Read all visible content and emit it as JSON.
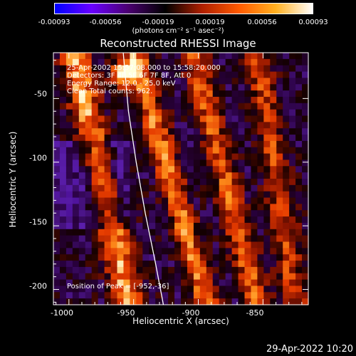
{
  "colorbar": {
    "ticks": [
      "-0.00093",
      "-0.00056",
      "-0.00019",
      "0.00019",
      "0.00056",
      "0.00093"
    ],
    "units": "(photons cm⁻² s⁻¹ asec⁻²)",
    "colors": [
      "#0000ff",
      "#6a00ff",
      "#4b0070",
      "#000000",
      "#b02000",
      "#ff5a00",
      "#ffb020",
      "#ffffff"
    ]
  },
  "chart_data": {
    "type": "heatmap",
    "title": "Reconstructed RHESSI Image",
    "xlabel": "Heliocentric X (arcsec)",
    "ylabel": "Heliocentric Y (arcsec)",
    "xlim": [
      -1012,
      -815
    ],
    "ylim": [
      -212,
      -14
    ],
    "x_ticks": [
      "-1000",
      "-950",
      "-900",
      "-850"
    ],
    "x_tick_values": [
      -1000,
      -950,
      -900,
      -850
    ],
    "y_ticks": [
      "-50",
      "-100",
      "-150",
      "-200"
    ],
    "y_tick_values": [
      -50,
      -100,
      -150,
      -200
    ],
    "peak": {
      "x": -952,
      "y": -36
    },
    "limb": [
      [
        -958,
        -14
      ],
      [
        -954,
        -60
      ],
      [
        -948,
        -100
      ],
      [
        -941,
        -140
      ],
      [
        -933,
        -180
      ],
      [
        -927,
        -212
      ]
    ]
  },
  "info": {
    "time": "25-Apr-2002 15:57:08.000 to 15:58:20.000",
    "detectors": "Detectors: 3F 4F 5F 6F 7F 8F, Att 0",
    "energy": "Energy Range: 12.0 - 25.0 keV",
    "clean": "Clean    Total counts: 962.",
    "peak": "Position of Peak = [-952,-36]"
  },
  "footer": {
    "date": "29-Apr-2022 10:20"
  }
}
